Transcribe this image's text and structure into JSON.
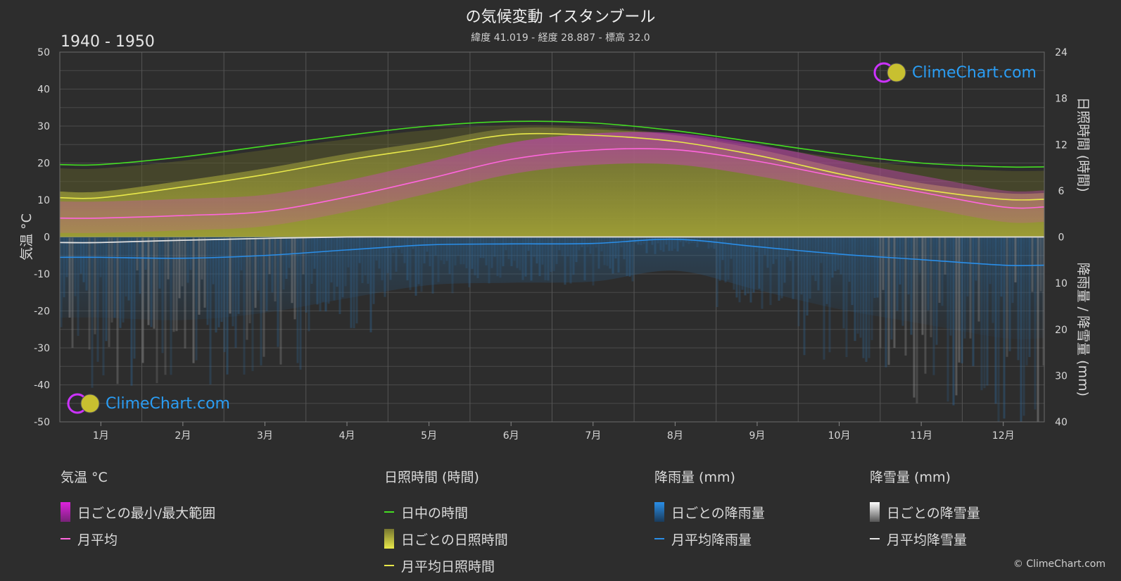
{
  "header": {
    "title": "の気候変動 イスタンブール",
    "subtitle": "緯度 41.019 - 経度 28.887 - 標高 32.0",
    "period": "1940 - 1950"
  },
  "brand": {
    "logo_text": "ClimeChart.com",
    "copyright": "© ClimeChart.com"
  },
  "chart_data": {
    "type": "area",
    "x_categories": [
      "1月",
      "2月",
      "3月",
      "4月",
      "5月",
      "6月",
      "7月",
      "8月",
      "9月",
      "10月",
      "11月",
      "12月"
    ],
    "axes": {
      "left": {
        "label": "気温 °C",
        "range": [
          -50,
          50
        ],
        "ticks": [
          "50",
          "40",
          "30",
          "20",
          "10",
          "0",
          "-10",
          "-20",
          "-30",
          "-40",
          "-50"
        ]
      },
      "right_top": {
        "label": "日照時間 (時間)",
        "range": [
          0,
          24
        ],
        "ticks": [
          "24",
          "18",
          "12",
          "6",
          "0"
        ]
      },
      "right_bottom": {
        "label": "降雨量 / 降雪量 (mm)",
        "range": [
          0,
          40
        ],
        "ticks": [
          "0",
          "10",
          "20",
          "30",
          "40"
        ]
      }
    },
    "series": [
      {
        "name": "日中の時間",
        "unit": "時間",
        "color": "#44dd22",
        "values": [
          9.4,
          10.4,
          11.8,
          13.2,
          14.4,
          15.0,
          14.8,
          13.8,
          12.3,
          10.8,
          9.6,
          9.1
        ]
      },
      {
        "name": "月平均日照時間",
        "unit": "時間",
        "color": "#e8e84a",
        "values": [
          5.1,
          6.5,
          8.1,
          10.0,
          11.6,
          13.3,
          13.2,
          12.4,
          10.6,
          8.2,
          6.2,
          4.9
        ]
      },
      {
        "name": "月平均",
        "unit": "°C",
        "color": "#ff66dd",
        "values": [
          5.1,
          5.8,
          6.9,
          10.8,
          15.8,
          21.0,
          23.5,
          23.6,
          20.5,
          16.2,
          12.1,
          8.1
        ]
      },
      {
        "name": "月平均降雨量",
        "unit": "mm",
        "color": "#2a8ee8",
        "values": [
          4.4,
          4.6,
          4.0,
          2.8,
          1.7,
          1.5,
          1.4,
          0.5,
          2.1,
          3.7,
          4.9,
          6.1
        ]
      },
      {
        "name": "月平均降雪量",
        "unit": "mm",
        "color": "#e0e0e0",
        "values": [
          1.2,
          0.7,
          0.3,
          0.0,
          0.0,
          0.0,
          0.0,
          0.0,
          0.0,
          0.0,
          0.0,
          0.0
        ]
      }
    ]
  },
  "legend": {
    "groups": [
      {
        "title": "気温 °C",
        "items": [
          {
            "label": "日ごとの最小/最大範囲",
            "kind": "box",
            "color": "#dd22dd"
          },
          {
            "label": "月平均",
            "kind": "line",
            "color": "#ff66dd"
          }
        ]
      },
      {
        "title": "日照時間 (時間)",
        "items": [
          {
            "label": "日中の時間",
            "kind": "line",
            "color": "#44dd22"
          },
          {
            "label": "日ごとの日照時間",
            "kind": "box",
            "color": "#c8c83a"
          },
          {
            "label": "月平均日照時間",
            "kind": "line",
            "color": "#e8e84a"
          }
        ]
      },
      {
        "title": "降雨量 (mm)",
        "items": [
          {
            "label": "日ごとの降雨量",
            "kind": "box",
            "color": "#2a8ee8"
          },
          {
            "label": "月平均降雨量",
            "kind": "line",
            "color": "#2a8ee8"
          }
        ]
      },
      {
        "title": "降雪量 (mm)",
        "items": [
          {
            "label": "日ごとの降雪量",
            "kind": "box",
            "color": "#e6e6e6"
          },
          {
            "label": "月平均降雪量",
            "kind": "line",
            "color": "#e6e6e6"
          }
        ]
      }
    ]
  }
}
